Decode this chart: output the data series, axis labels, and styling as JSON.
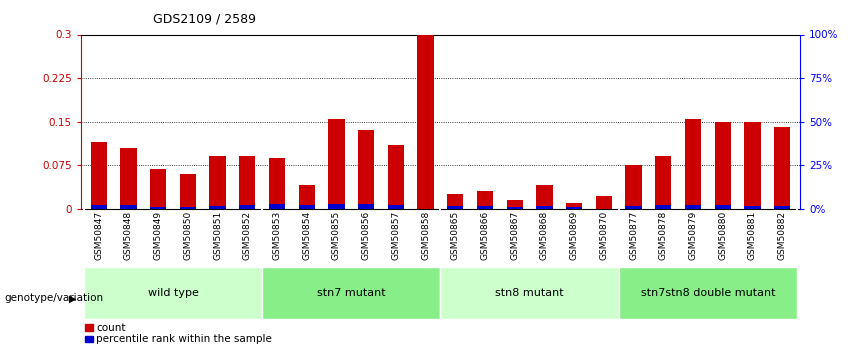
{
  "title": "GDS2109 / 2589",
  "samples": [
    "GSM50847",
    "GSM50848",
    "GSM50849",
    "GSM50850",
    "GSM50851",
    "GSM50852",
    "GSM50853",
    "GSM50854",
    "GSM50855",
    "GSM50856",
    "GSM50857",
    "GSM50858",
    "GSM50865",
    "GSM50866",
    "GSM50867",
    "GSM50868",
    "GSM50869",
    "GSM50870",
    "GSM50877",
    "GSM50878",
    "GSM50879",
    "GSM50880",
    "GSM50881",
    "GSM50882"
  ],
  "count_values": [
    0.115,
    0.105,
    0.068,
    0.06,
    0.09,
    0.09,
    0.088,
    0.04,
    0.155,
    0.135,
    0.11,
    0.3,
    0.025,
    0.03,
    0.015,
    0.04,
    0.01,
    0.022,
    0.075,
    0.09,
    0.155,
    0.15,
    0.15,
    0.14
  ],
  "percentile_values": [
    0.006,
    0.006,
    0.003,
    0.003,
    0.005,
    0.006,
    0.008,
    0.006,
    0.008,
    0.008,
    0.006,
    0.0,
    0.005,
    0.005,
    0.003,
    0.005,
    0.003,
    0.0,
    0.005,
    0.006,
    0.007,
    0.006,
    0.005,
    0.005
  ],
  "groups": [
    {
      "label": "wild type",
      "start": 0,
      "end": 6,
      "color": "#ccffcc"
    },
    {
      "label": "stn7 mutant",
      "start": 6,
      "end": 12,
      "color": "#88ee88"
    },
    {
      "label": "stn8 mutant",
      "start": 12,
      "end": 18,
      "color": "#ccffcc"
    },
    {
      "label": "stn7stn8 double mutant",
      "start": 18,
      "end": 24,
      "color": "#88ee88"
    }
  ],
  "bar_color_red": "#cc0000",
  "bar_color_blue": "#0000cc",
  "bar_width": 0.55,
  "ylim_left": [
    0,
    0.3
  ],
  "ylim_right": [
    0,
    100
  ],
  "yticks_left": [
    0,
    0.075,
    0.15,
    0.225,
    0.3
  ],
  "ytick_labels_left": [
    "0",
    "0.075",
    "0.15",
    "0.225",
    "0.3"
  ],
  "yticks_right": [
    0,
    25,
    50,
    75,
    100
  ],
  "ytick_labels_right": [
    "0%",
    "25%",
    "50%",
    "75%",
    "100%"
  ],
  "gridlines_at": [
    0.075,
    0.15,
    0.225
  ],
  "group_row_label": "genotype/variation",
  "legend_count": "count",
  "legend_percentile": "percentile rank within the sample"
}
